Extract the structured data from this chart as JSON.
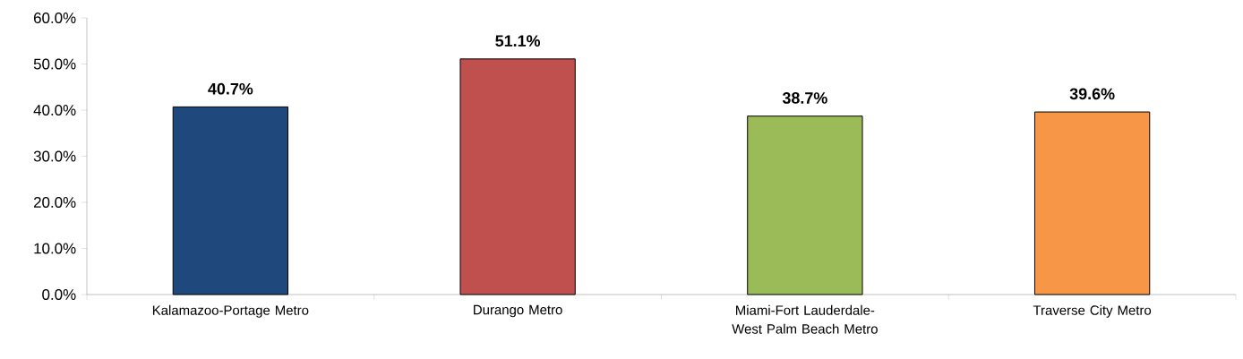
{
  "chart_data": {
    "type": "bar",
    "categories": [
      "Kalamazoo-Portage Metro",
      "Durango Metro",
      "Miami-Fort Lauderdale-West Palm Beach Metro",
      "Traverse City Metro"
    ],
    "values": [
      40.7,
      51.1,
      38.7,
      39.6
    ],
    "value_labels": [
      "40.7%",
      "51.1%",
      "38.7%",
      "39.6%"
    ],
    "colors": [
      "#1f497d",
      "#c0504d",
      "#9bbb59",
      "#f79646"
    ],
    "ylim": [
      0,
      60
    ],
    "yticks": [
      {
        "value": 0,
        "label": "0.0%"
      },
      {
        "value": 10,
        "label": "10.0%"
      },
      {
        "value": 20,
        "label": "20.0%"
      },
      {
        "value": 30,
        "label": "30.0%"
      },
      {
        "value": 40,
        "label": "40.0%"
      },
      {
        "value": 50,
        "label": "50.0%"
      },
      {
        "value": 60,
        "label": "60.0%"
      }
    ]
  }
}
